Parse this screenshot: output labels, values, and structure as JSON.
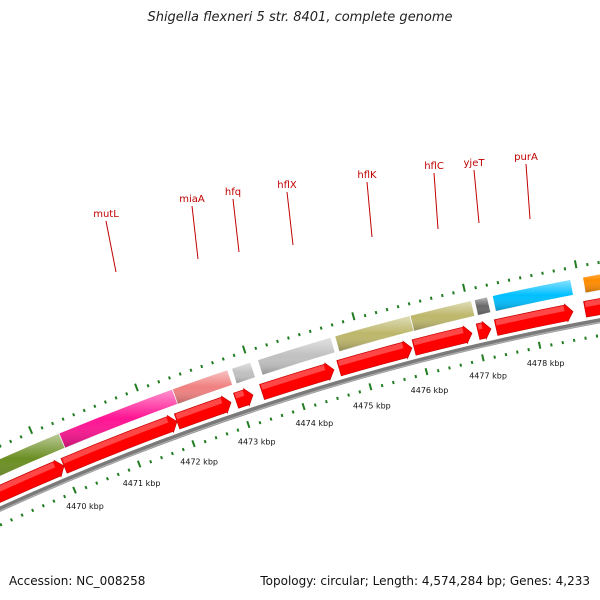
{
  "header": {
    "title": "Shigella flexneri 5 str. 8401, complete genome"
  },
  "footer": {
    "accession": "Accession: NC_008258",
    "summary": "Topology: circular; Length: 4,574,284 bp; Genes: 4,233"
  },
  "colors": {
    "cds": "#ff0000",
    "tick": "#207d20",
    "backbone": "#8c8c8c",
    "label": "#c00000"
  },
  "scale_labels": [
    "4470 kbp",
    "4471 kbp",
    "4472 kbp",
    "4473 kbp",
    "4474 kbp",
    "4475 kbp",
    "4476 kbp",
    "4477 kbp",
    "4478 kbp"
  ],
  "gene_labels": [
    "mutL",
    "miaA",
    "hfq",
    "hflX",
    "hflK",
    "hflC",
    "yjeT",
    "purA"
  ],
  "features": [
    {
      "name": "",
      "color": "#6b8e23"
    },
    {
      "name": "mutL",
      "color": "#ff1493"
    },
    {
      "name": "miaA",
      "color": "#f08080"
    },
    {
      "name": "hfq",
      "color": "#c0c0c0"
    },
    {
      "name": "hflX",
      "color": "#c0c0c0"
    },
    {
      "name": "hflK",
      "color": "#bdb76b"
    },
    {
      "name": "hflC",
      "color": "#bdb76b"
    },
    {
      "name": "yjeT",
      "color": "#696969"
    },
    {
      "name": "purA",
      "color": "#00bfff"
    },
    {
      "name": "",
      "color": "#ff8c00"
    }
  ]
}
